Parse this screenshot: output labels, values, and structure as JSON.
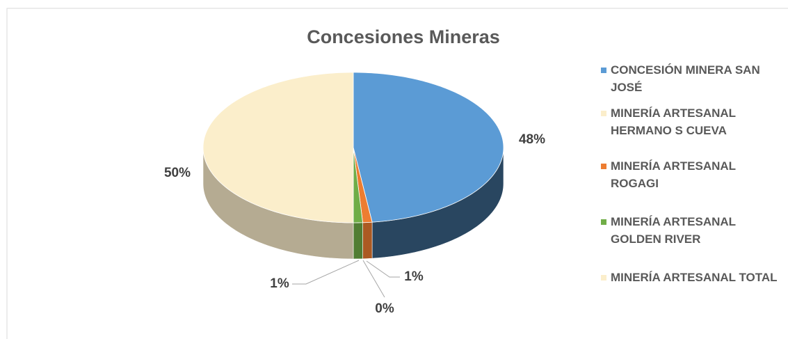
{
  "chart_data": {
    "type": "pie3d",
    "title": "Concesiones Mineras",
    "categories": [
      "CONCESIÓN MINERA SAN JOSÉ",
      "MINERÍA ARTESANAL HERMANO S CUEVA",
      "MINERÍA ARTESANAL ROGAGI",
      "MINERÍA ARTESANAL GOLDEN RIVER",
      "MINERÍA ARTESANAL TOTAL"
    ],
    "values": [
      48,
      0,
      1,
      1,
      50
    ],
    "value_labels": [
      "48%",
      "0%",
      "1%",
      "1%",
      "50%"
    ],
    "colors": [
      "#5b9bd5",
      "#fbeecb",
      "#ed7d31",
      "#70ad47",
      "#fbeecb"
    ],
    "legend": "right"
  }
}
